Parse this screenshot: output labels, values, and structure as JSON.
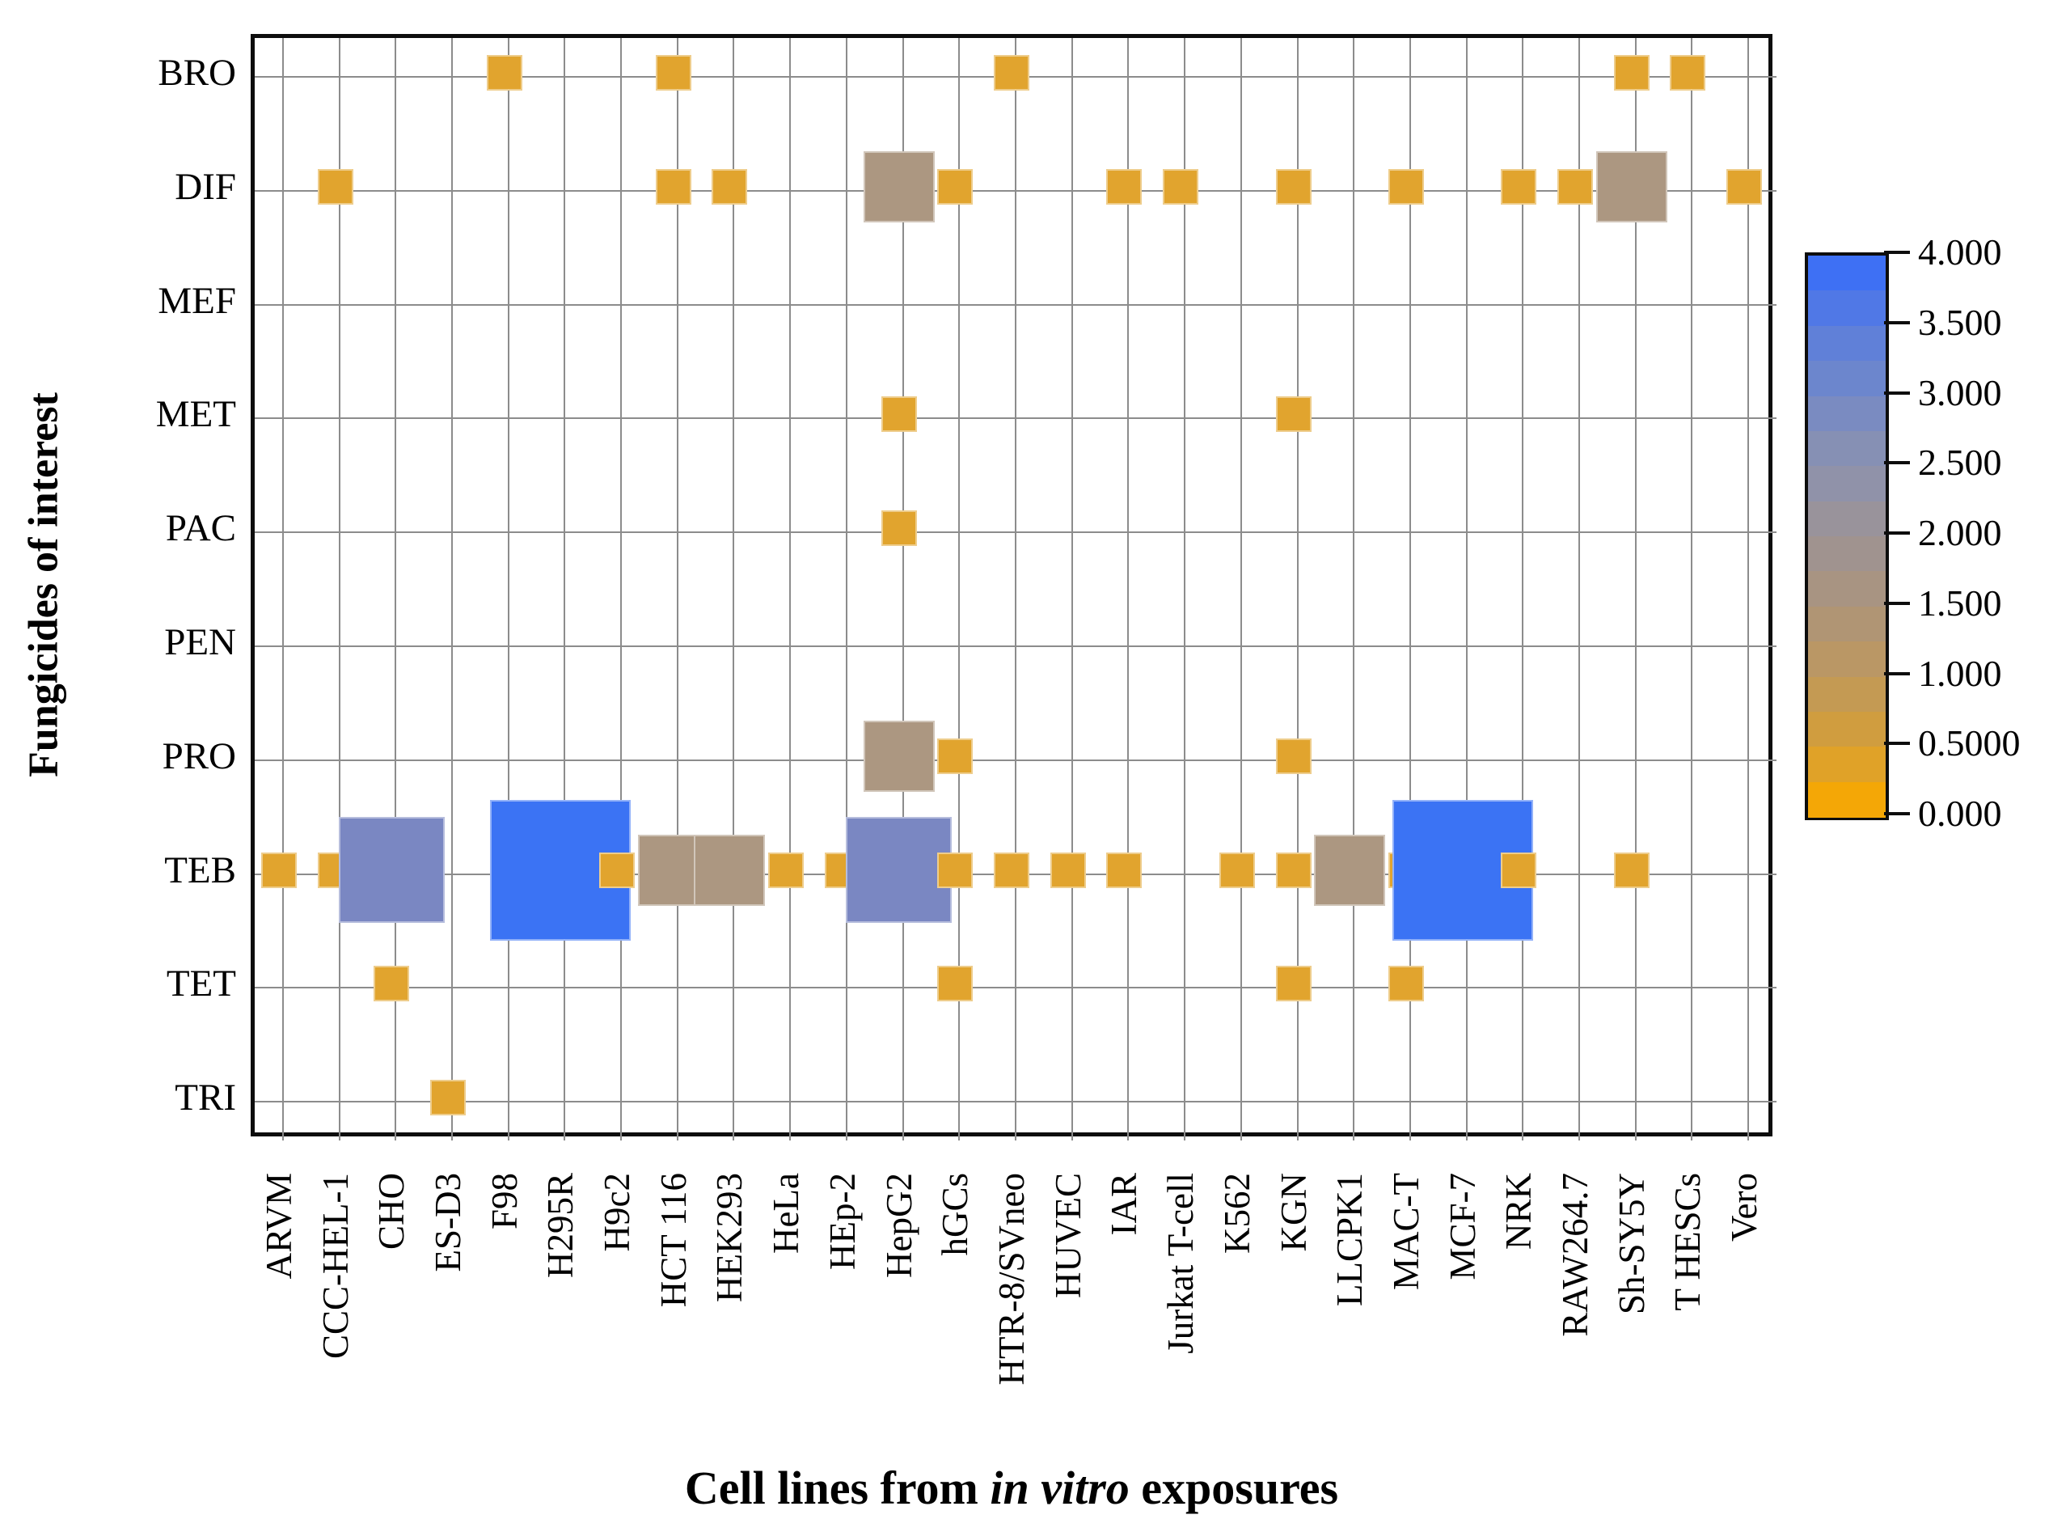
{
  "chart_data": {
    "type": "heatmap",
    "subtype": "sized-square-matrix",
    "xlabel_parts": {
      "pre": "Cell lines from ",
      "italic": "in vitro",
      "post": " exposures"
    },
    "ylabel": "Fungicides of interest",
    "x_categories": [
      "ARVM",
      "CCC-HEL-1",
      "CHO",
      "ES-D3",
      "F98",
      "H295R",
      "H9c2",
      "HCT 116",
      "HEK293",
      "HeLa",
      "HEp-2",
      "HepG2",
      "hGCs",
      "HTR-8/SVneo",
      "HUVEC",
      "IAR",
      "Jurkat T-cell",
      "K562",
      "KGN",
      "LLCPK1",
      "MAC-T",
      "MCF-7",
      "NRK",
      "RAW264.7",
      "Sh-SY5Y",
      "T HESCs",
      "Vero"
    ],
    "y_categories": [
      "BRO",
      "DIF",
      "MEF",
      "MET",
      "PAC",
      "PEN",
      "PRO",
      "TEB",
      "TET",
      "TRI"
    ],
    "grid": true,
    "legend_position": "right-colorbar",
    "colorbar": {
      "min": 0,
      "max": 4,
      "tick_labels": [
        "4.000",
        "3.500",
        "3.000",
        "2.500",
        "2.000",
        "1.500",
        "1.000",
        "0.5000",
        "0.000"
      ],
      "bands_top_to_bottom": [
        "#3E70F4",
        "#5078E6",
        "#6080D8",
        "#6C86CD",
        "#7A8BC1",
        "#8690B4",
        "#9092A9",
        "#99939B",
        "#A0938F",
        "#A89482",
        "#B09574",
        "#BA9765",
        "#C49A53",
        "#D09D3F",
        "#E0A228",
        "#F4A706"
      ]
    },
    "value_styles": {
      "0.5": {
        "size": 44,
        "color": "#E1A42E"
      },
      "2": {
        "size": 88,
        "color": "#AC9781"
      },
      "3": {
        "size": 131,
        "color": "#7A87C2"
      },
      "4": {
        "size": 174,
        "color": "#3B73F4"
      }
    },
    "points": [
      {
        "y": "BRO",
        "x": "F98",
        "v": 0.5
      },
      {
        "y": "BRO",
        "x": "HCT 116",
        "v": 0.5
      },
      {
        "y": "BRO",
        "x": "HTR-8/SVneo",
        "v": 0.5
      },
      {
        "y": "BRO",
        "x": "Sh-SY5Y",
        "v": 0.5
      },
      {
        "y": "BRO",
        "x": "T HESCs",
        "v": 0.5
      },
      {
        "y": "DIF",
        "x": "CCC-HEL-1",
        "v": 0.5
      },
      {
        "y": "DIF",
        "x": "HCT 116",
        "v": 0.5
      },
      {
        "y": "DIF",
        "x": "HEK293",
        "v": 0.5
      },
      {
        "y": "DIF",
        "x": "HepG2",
        "v": 2
      },
      {
        "y": "DIF",
        "x": "hGCs",
        "v": 0.5
      },
      {
        "y": "DIF",
        "x": "IAR",
        "v": 0.5
      },
      {
        "y": "DIF",
        "x": "Jurkat T-cell",
        "v": 0.5
      },
      {
        "y": "DIF",
        "x": "KGN",
        "v": 0.5
      },
      {
        "y": "DIF",
        "x": "MAC-T",
        "v": 0.5
      },
      {
        "y": "DIF",
        "x": "NRK",
        "v": 0.5
      },
      {
        "y": "DIF",
        "x": "RAW264.7",
        "v": 0.5
      },
      {
        "y": "DIF",
        "x": "Sh-SY5Y",
        "v": 2
      },
      {
        "y": "DIF",
        "x": "Vero",
        "v": 0.5
      },
      {
        "y": "MET",
        "x": "HepG2",
        "v": 0.5
      },
      {
        "y": "MET",
        "x": "KGN",
        "v": 0.5
      },
      {
        "y": "PAC",
        "x": "HepG2",
        "v": 0.5
      },
      {
        "y": "PRO",
        "x": "HepG2",
        "v": 2
      },
      {
        "y": "PRO",
        "x": "hGCs",
        "v": 0.5
      },
      {
        "y": "PRO",
        "x": "KGN",
        "v": 0.5
      },
      {
        "y": "TEB",
        "x": "ARVM",
        "v": 0.5
      },
      {
        "y": "TEB",
        "x": "CCC-HEL-1",
        "v": 0.5
      },
      {
        "y": "TEB",
        "x": "CHO",
        "v": 3
      },
      {
        "y": "TEB",
        "x": "H295R",
        "v": 4
      },
      {
        "y": "TEB",
        "x": "H9c2",
        "v": 0.5
      },
      {
        "y": "TEB",
        "x": "HCT 116",
        "v": 2
      },
      {
        "y": "TEB",
        "x": "HEK293",
        "v": 2
      },
      {
        "y": "TEB",
        "x": "HeLa",
        "v": 0.5
      },
      {
        "y": "TEB",
        "x": "HEp-2",
        "v": 0.5
      },
      {
        "y": "TEB",
        "x": "HepG2",
        "v": 3
      },
      {
        "y": "TEB",
        "x": "hGCs",
        "v": 0.5
      },
      {
        "y": "TEB",
        "x": "HTR-8/SVneo",
        "v": 0.5
      },
      {
        "y": "TEB",
        "x": "HUVEC",
        "v": 0.5
      },
      {
        "y": "TEB",
        "x": "IAR",
        "v": 0.5
      },
      {
        "y": "TEB",
        "x": "K562",
        "v": 0.5
      },
      {
        "y": "TEB",
        "x": "KGN",
        "v": 0.5
      },
      {
        "y": "TEB",
        "x": "LLCPK1",
        "v": 2
      },
      {
        "y": "TEB",
        "x": "MAC-T",
        "v": 0.5
      },
      {
        "y": "TEB",
        "x": "MCF-7",
        "v": 4
      },
      {
        "y": "TEB",
        "x": "NRK",
        "v": 0.5
      },
      {
        "y": "TEB",
        "x": "Sh-SY5Y",
        "v": 0.5
      },
      {
        "y": "TET",
        "x": "CHO",
        "v": 0.5
      },
      {
        "y": "TET",
        "x": "hGCs",
        "v": 0.5
      },
      {
        "y": "TET",
        "x": "KGN",
        "v": 0.5
      },
      {
        "y": "TET",
        "x": "MAC-T",
        "v": 0.5
      },
      {
        "y": "TRI",
        "x": "ES-D3",
        "v": 0.5
      }
    ]
  }
}
